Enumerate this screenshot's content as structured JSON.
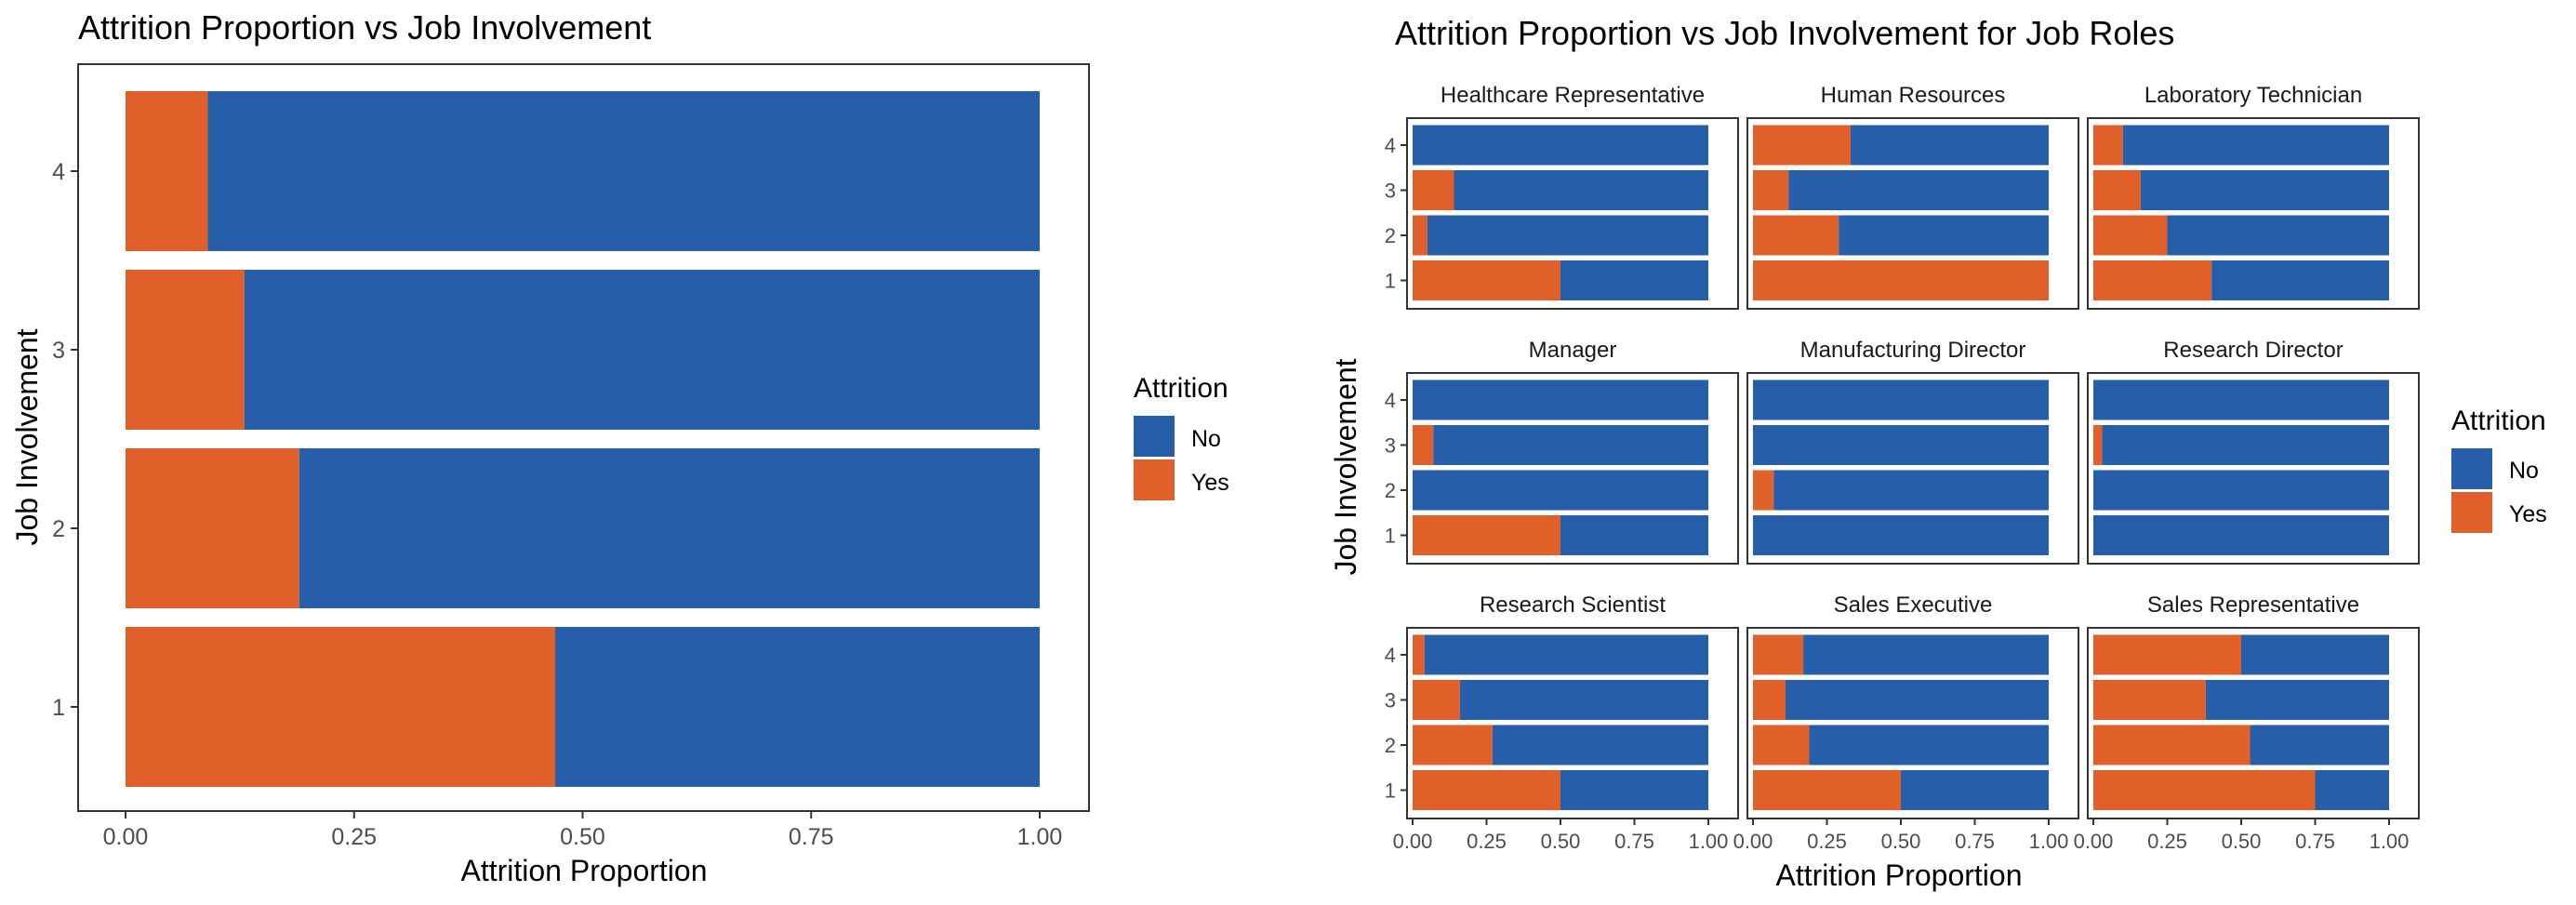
{
  "colors": {
    "no": "#265EAA",
    "yes": "#E15F29",
    "frame": "#333333",
    "axis_text": "#4d4d4d",
    "text": "#000000"
  },
  "left_chart": {
    "title": "Attrition Proportion vs Job Involvement",
    "xlabel": "Attrition Proportion",
    "ylabel": "Job Involvement",
    "legend": {
      "title": "Attrition",
      "items": [
        "No",
        "Yes"
      ]
    }
  },
  "right_chart": {
    "title": "Attrition Proportion vs Job Involvement for Job Roles",
    "xlabel": "Attrition Proportion",
    "ylabel": "Job Involvement",
    "legend": {
      "title": "Attrition",
      "items": [
        "No",
        "Yes"
      ]
    }
  },
  "chart_data": [
    {
      "type": "bar",
      "orientation": "horizontal",
      "stacked": true,
      "title": "Attrition Proportion vs Job Involvement",
      "xlabel": "Attrition Proportion",
      "ylabel": "Job Involvement",
      "xlim": [
        0,
        1
      ],
      "x_ticks": [
        "0.00",
        "0.25",
        "0.50",
        "0.75",
        "1.00"
      ],
      "categories": [
        "1",
        "2",
        "3",
        "4"
      ],
      "series": [
        {
          "name": "Yes",
          "values": [
            0.47,
            0.19,
            0.13,
            0.09
          ]
        },
        {
          "name": "No",
          "values": [
            0.53,
            0.81,
            0.87,
            0.91
          ]
        }
      ],
      "legend_title": "Attrition",
      "legend_position": "right",
      "grid": false
    },
    {
      "type": "bar",
      "orientation": "horizontal",
      "stacked": true,
      "faceted": true,
      "title": "Attrition Proportion vs Job Involvement for Job Roles",
      "xlabel": "Attrition Proportion",
      "ylabel": "Job Involvement",
      "xlim": [
        0,
        1
      ],
      "x_ticks": [
        "0.00",
        "0.25",
        "0.50",
        "0.75",
        "1.00"
      ],
      "categories": [
        "1",
        "2",
        "3",
        "4"
      ],
      "legend_title": "Attrition",
      "legend_position": "right",
      "grid": false,
      "facets": [
        {
          "name": "Healthcare Representative",
          "yes": [
            0.5,
            0.05,
            0.14,
            0.0
          ]
        },
        {
          "name": "Human Resources",
          "yes": [
            1.0,
            0.29,
            0.12,
            0.33
          ]
        },
        {
          "name": "Laboratory Technician",
          "yes": [
            0.4,
            0.25,
            0.16,
            0.1
          ]
        },
        {
          "name": "Manager",
          "yes": [
            0.5,
            0.0,
            0.07,
            0.0
          ]
        },
        {
          "name": "Manufacturing Director",
          "yes": [
            0.0,
            0.07,
            0.0,
            0.0
          ]
        },
        {
          "name": "Research Director",
          "yes": [
            0.0,
            0.0,
            0.03,
            0.0
          ]
        },
        {
          "name": "Research Scientist",
          "yes": [
            0.5,
            0.27,
            0.16,
            0.04
          ]
        },
        {
          "name": "Sales Executive",
          "yes": [
            0.5,
            0.19,
            0.11,
            0.17
          ]
        },
        {
          "name": "Sales Representative",
          "yes": [
            0.75,
            0.53,
            0.38,
            0.5
          ]
        }
      ]
    }
  ]
}
